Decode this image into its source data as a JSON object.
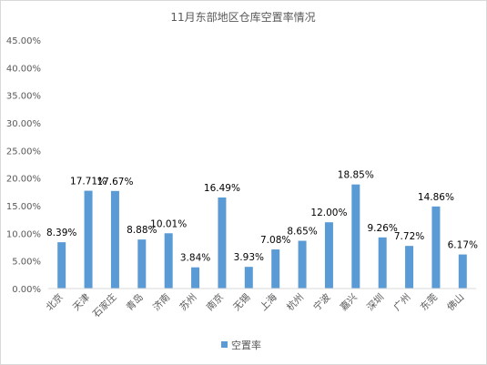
{
  "chart_data": {
    "type": "bar",
    "title": "11月东部地区仓库空置率情况",
    "categories": [
      "北京",
      "天津",
      "石家庄",
      "青岛",
      "济南",
      "苏州",
      "南京",
      "无锡",
      "上海",
      "杭州",
      "宁波",
      "嘉兴",
      "深圳",
      "广州",
      "东莞",
      "佛山"
    ],
    "series": [
      {
        "name": "空置率",
        "values": [
          8.39,
          17.71,
          17.67,
          8.88,
          10.01,
          3.84,
          16.49,
          3.93,
          7.08,
          8.65,
          12.0,
          18.85,
          9.26,
          7.72,
          14.86,
          6.17
        ],
        "labels": [
          "8.39%",
          "17.71%",
          "17.67%",
          "8.88%",
          "10.01%",
          "3.84%",
          "16.49%",
          "3.93%",
          "7.08%",
          "8.65%",
          "12.00%",
          "18.85%",
          "9.26%",
          "7.72%",
          "14.86%",
          "6.17%"
        ],
        "color": "#5b9bd5"
      }
    ],
    "ylim": [
      0,
      45
    ],
    "yticks": [
      0,
      5,
      10,
      15,
      20,
      25,
      30,
      35,
      40,
      45
    ],
    "ytick_labels": [
      "0.00%",
      "5.00%",
      "10.00%",
      "15.00%",
      "20.00%",
      "25.00%",
      "30.00%",
      "35.00%",
      "40.00%",
      "45.00%"
    ],
    "grid": false,
    "legend": "bottom",
    "xlabel": "",
    "ylabel": ""
  }
}
